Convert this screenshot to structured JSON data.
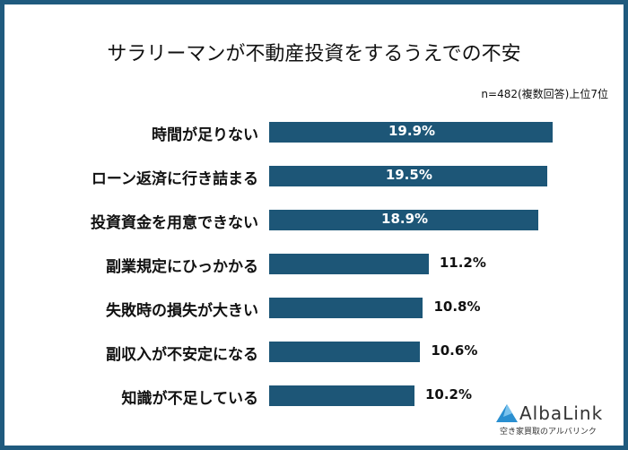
{
  "chart_data": {
    "type": "bar",
    "orientation": "horizontal",
    "title": "サラリーマンが不動産投資をするうえでの不安",
    "subtitle": "n=482(複数回答)上位7位",
    "categories": [
      "時間が足りない",
      "ローン返済に行き詰まる",
      "投資資金を用意できない",
      "副業規定にひっかかる",
      "失敗時の損失が大きい",
      "副収入が不安定になる",
      "知識が不足している"
    ],
    "values": [
      19.9,
      19.5,
      18.9,
      11.2,
      10.8,
      10.6,
      10.2
    ],
    "value_labels": [
      "19.9%",
      "19.5%",
      "18.9%",
      "11.2%",
      "10.8%",
      "10.6%",
      "10.2%"
    ],
    "bar_color": "#1d5677",
    "grid": false
  },
  "logo": {
    "name": "AlbaLink",
    "tagline": "空き家買取のアルバリンク"
  }
}
